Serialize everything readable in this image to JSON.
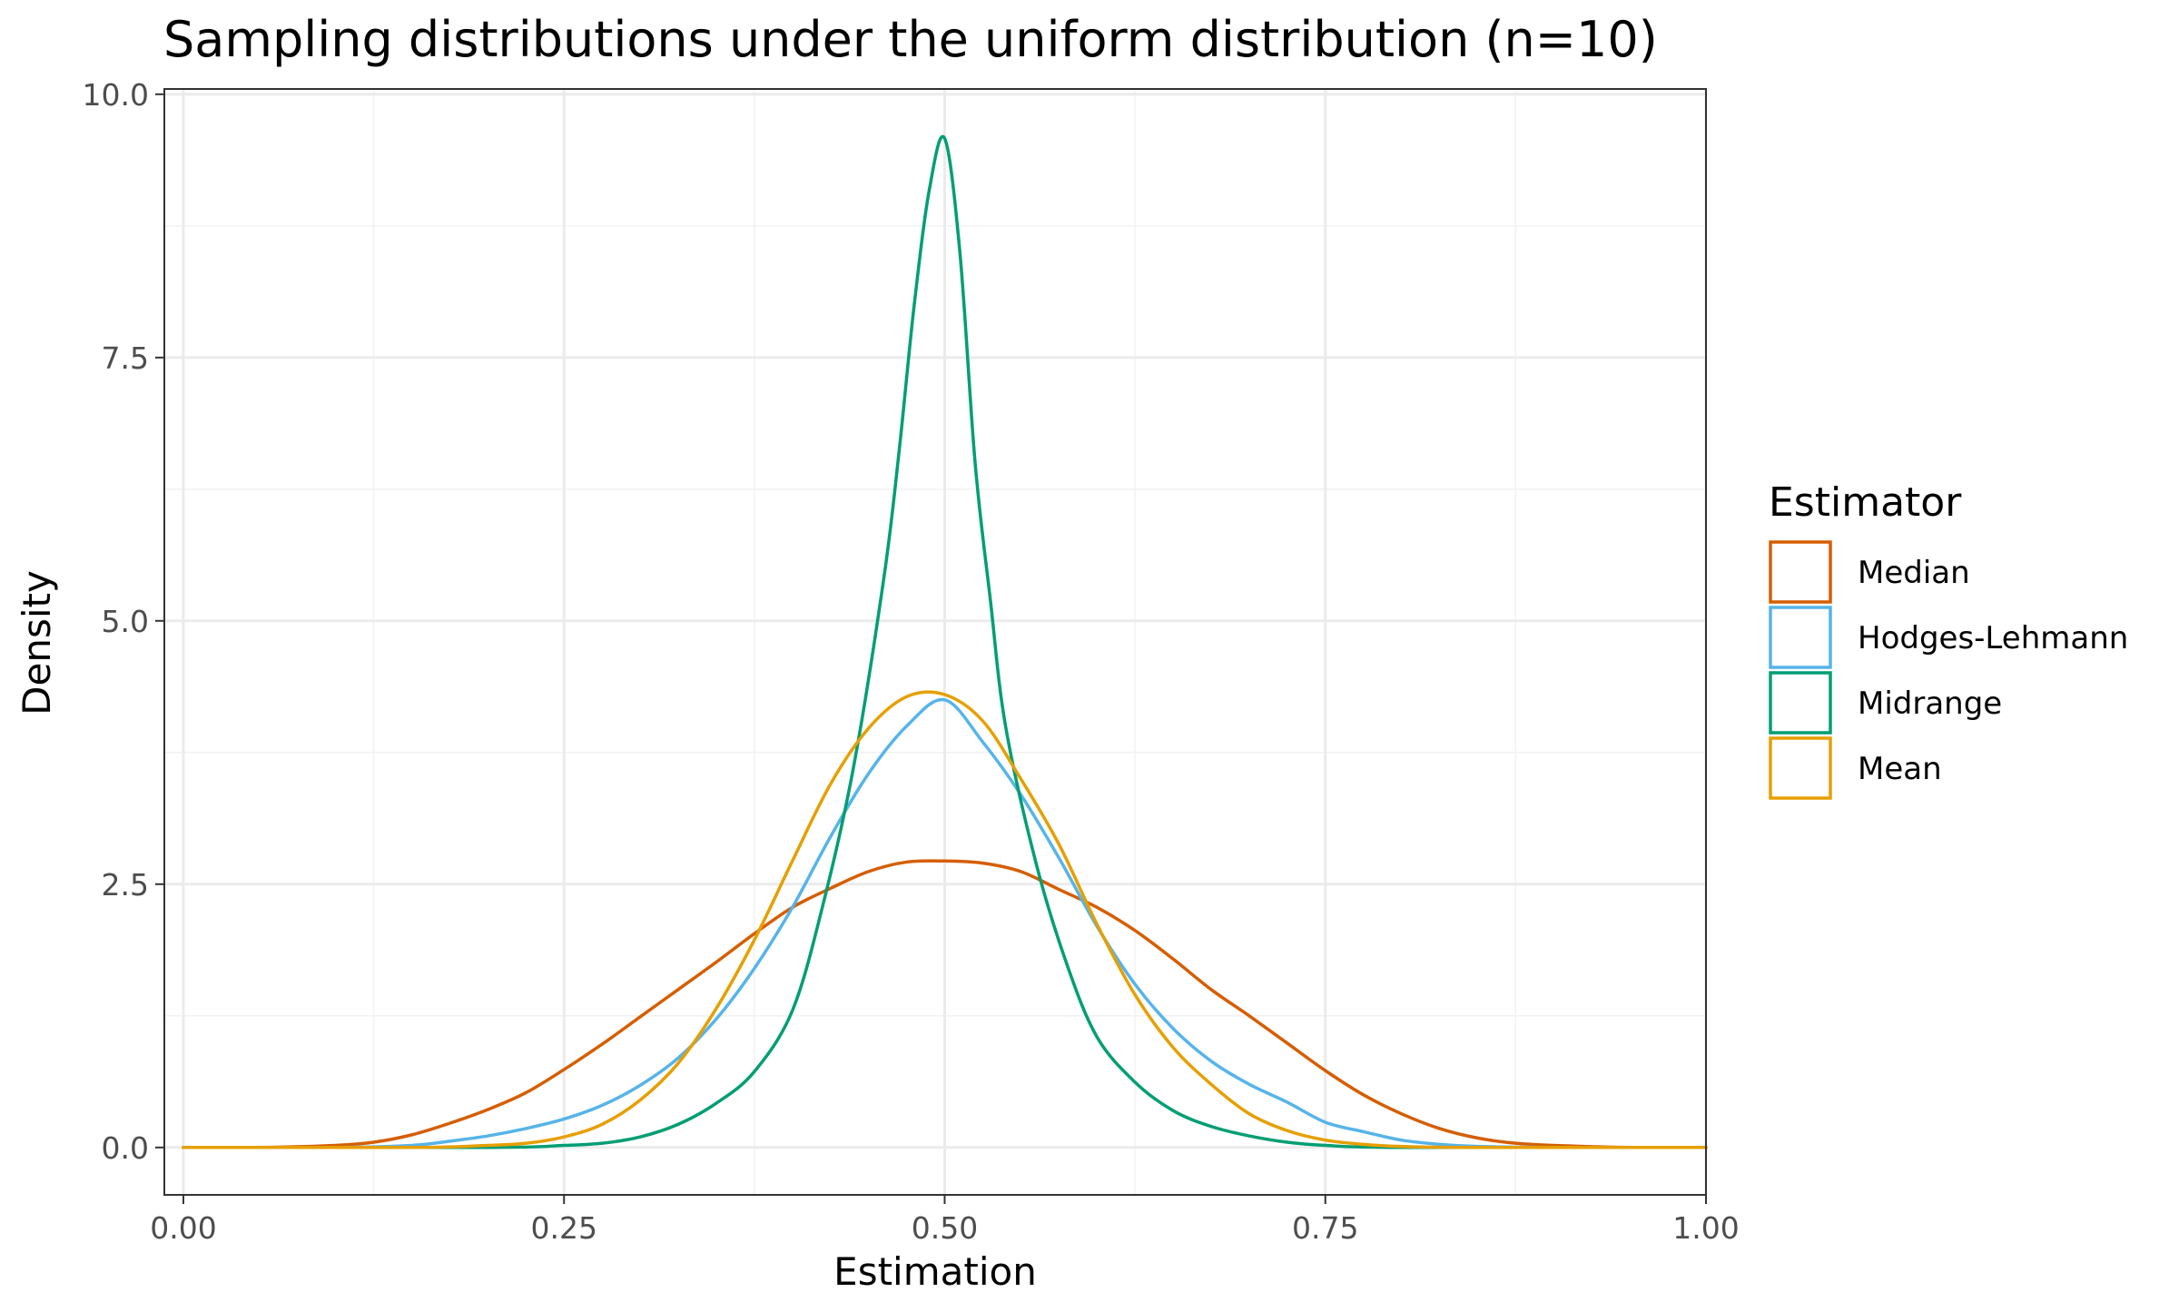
{
  "chart_data": {
    "type": "line",
    "title": "Sampling distributions under the uniform distribution (n=10)",
    "xlabel": "Estimation",
    "ylabel": "Density",
    "xlim": [
      -0.0125,
      1.0
    ],
    "ylim": [
      -0.45,
      10.05
    ],
    "xticks": [
      0.0,
      0.25,
      0.5,
      0.75,
      1.0
    ],
    "xtick_labels": [
      "0.00",
      "0.25",
      "0.50",
      "0.75",
      "1.00"
    ],
    "yticks": [
      0.0,
      2.5,
      5.0,
      7.5,
      10.0
    ],
    "ytick_labels": [
      "0.0",
      "2.5",
      "5.0",
      "7.5",
      "10.0"
    ],
    "grid": true,
    "legend": {
      "title": "Estimator",
      "placement": "right"
    },
    "series": [
      {
        "name": "Median",
        "color": "#D55E00",
        "x": [
          0.0,
          0.05,
          0.1,
          0.125,
          0.15,
          0.175,
          0.2,
          0.225,
          0.25,
          0.275,
          0.3,
          0.325,
          0.35,
          0.375,
          0.4,
          0.425,
          0.45,
          0.475,
          0.5,
          0.525,
          0.55,
          0.575,
          0.6,
          0.625,
          0.65,
          0.675,
          0.7,
          0.725,
          0.75,
          0.775,
          0.8,
          0.825,
          0.85,
          0.875,
          0.9,
          0.95,
          1.0
        ],
        "y": [
          0.0,
          0.0,
          0.02,
          0.05,
          0.12,
          0.23,
          0.36,
          0.52,
          0.74,
          0.98,
          1.24,
          1.5,
          1.76,
          2.03,
          2.28,
          2.46,
          2.62,
          2.71,
          2.72,
          2.7,
          2.62,
          2.45,
          2.28,
          2.06,
          1.79,
          1.5,
          1.25,
          0.99,
          0.73,
          0.5,
          0.32,
          0.18,
          0.09,
          0.04,
          0.02,
          0.0,
          0.0
        ]
      },
      {
        "name": "Hodges-Lehmann",
        "color": "#56B4E9",
        "x": [
          0.0,
          0.1,
          0.15,
          0.175,
          0.2,
          0.225,
          0.25,
          0.275,
          0.3,
          0.325,
          0.35,
          0.375,
          0.4,
          0.425,
          0.45,
          0.475,
          0.5,
          0.525,
          0.55,
          0.575,
          0.6,
          0.625,
          0.65,
          0.675,
          0.7,
          0.725,
          0.75,
          0.775,
          0.8,
          0.825,
          0.85,
          0.9,
          1.0
        ],
        "y": [
          0.0,
          0.0,
          0.02,
          0.06,
          0.11,
          0.18,
          0.27,
          0.4,
          0.59,
          0.85,
          1.22,
          1.7,
          2.28,
          2.95,
          3.55,
          4.0,
          4.25,
          3.85,
          3.35,
          2.75,
          2.1,
          1.55,
          1.13,
          0.82,
          0.6,
          0.43,
          0.24,
          0.15,
          0.07,
          0.03,
          0.01,
          0.0,
          0.0
        ]
      },
      {
        "name": "Midrange",
        "color": "#009E73",
        "x": [
          0.0,
          0.2,
          0.25,
          0.275,
          0.3,
          0.325,
          0.35,
          0.375,
          0.4,
          0.42,
          0.44,
          0.46,
          0.47,
          0.48,
          0.49,
          0.5,
          0.51,
          0.52,
          0.53,
          0.54,
          0.56,
          0.58,
          0.6,
          0.625,
          0.65,
          0.675,
          0.7,
          0.725,
          0.75,
          0.8,
          1.0
        ],
        "y": [
          0.0,
          0.0,
          0.02,
          0.04,
          0.1,
          0.22,
          0.42,
          0.72,
          1.3,
          2.3,
          3.6,
          5.4,
          6.6,
          8.0,
          9.1,
          9.58,
          8.5,
          6.5,
          5.2,
          4.0,
          2.7,
          1.75,
          1.05,
          0.62,
          0.35,
          0.2,
          0.11,
          0.05,
          0.02,
          0.0,
          0.0
        ]
      },
      {
        "name": "Mean",
        "color": "#E69F00",
        "x": [
          0.0,
          0.15,
          0.2,
          0.225,
          0.25,
          0.275,
          0.3,
          0.325,
          0.35,
          0.375,
          0.4,
          0.425,
          0.45,
          0.475,
          0.5,
          0.525,
          0.55,
          0.575,
          0.6,
          0.625,
          0.65,
          0.675,
          0.7,
          0.725,
          0.75,
          0.775,
          0.8,
          0.85,
          1.0
        ],
        "y": [
          0.0,
          0.0,
          0.02,
          0.04,
          0.1,
          0.22,
          0.45,
          0.8,
          1.32,
          1.97,
          2.72,
          3.45,
          3.98,
          4.28,
          4.3,
          4.05,
          3.5,
          2.88,
          2.12,
          1.45,
          0.95,
          0.6,
          0.32,
          0.16,
          0.07,
          0.03,
          0.01,
          0.0,
          0.0
        ]
      }
    ]
  }
}
